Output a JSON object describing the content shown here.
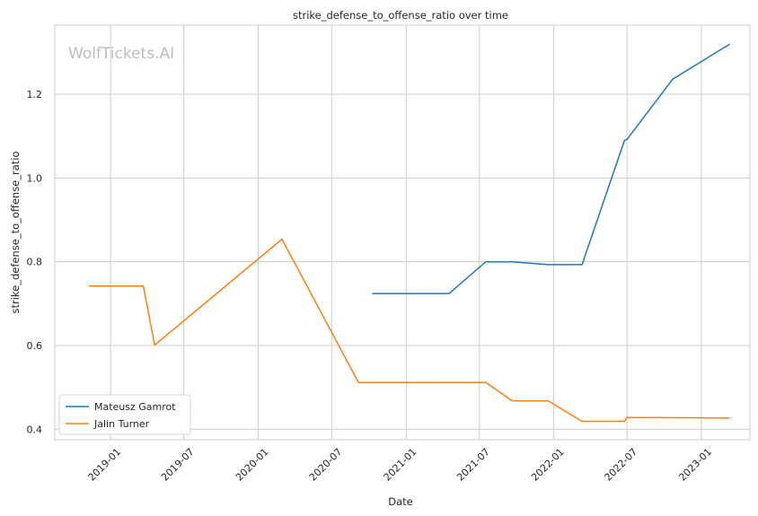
{
  "chart_data": {
    "type": "line",
    "title": "strike_defense_to_offense_ratio over time",
    "xlabel": "Date",
    "ylabel": "strike_defense_to_offense_ratio",
    "watermark": "WolfTickets.AI",
    "xlim": [
      "2018-08-16",
      "2023-05-01"
    ],
    "ylim": [
      0.375,
      1.365
    ],
    "x_ticks": [
      "2019-01",
      "2019-07",
      "2020-01",
      "2020-07",
      "2021-01",
      "2021-07",
      "2022-01",
      "2022-07",
      "2023-01"
    ],
    "y_ticks": [
      0.4,
      0.6,
      0.8,
      1.0,
      1.2
    ],
    "grid": true,
    "legend_position": "lower-left",
    "series": [
      {
        "name": "Mateusz Gamrot",
        "color": "#1f77b4",
        "points": [
          {
            "x": "2020-10-10",
            "y": 0.724
          },
          {
            "x": "2021-04-17",
            "y": 0.724
          },
          {
            "x": "2021-07-17",
            "y": 0.8
          },
          {
            "x": "2021-09-20",
            "y": 0.8
          },
          {
            "x": "2021-12-18",
            "y": 0.793
          },
          {
            "x": "2022-03-12",
            "y": 0.793
          },
          {
            "x": "2022-06-25",
            "y": 1.09
          },
          {
            "x": "2022-07-01",
            "y": 1.092
          },
          {
            "x": "2022-10-22",
            "y": 1.236
          },
          {
            "x": "2023-03-11",
            "y": 1.319
          }
        ]
      },
      {
        "name": "Jalin Turner",
        "color": "#ff7f0e",
        "points": [
          {
            "x": "2018-11-10",
            "y": 0.742
          },
          {
            "x": "2019-03-23",
            "y": 0.742
          },
          {
            "x": "2019-04-20",
            "y": 0.601
          },
          {
            "x": "2020-02-29",
            "y": 0.854
          },
          {
            "x": "2020-09-05",
            "y": 0.512
          },
          {
            "x": "2021-07-17",
            "y": 0.512
          },
          {
            "x": "2021-09-20",
            "y": 0.468
          },
          {
            "x": "2021-12-18",
            "y": 0.468
          },
          {
            "x": "2022-03-12",
            "y": 0.419
          },
          {
            "x": "2022-06-25",
            "y": 0.419
          },
          {
            "x": "2022-07-01",
            "y": 0.428
          },
          {
            "x": "2023-03-11",
            "y": 0.427
          }
        ]
      }
    ]
  }
}
